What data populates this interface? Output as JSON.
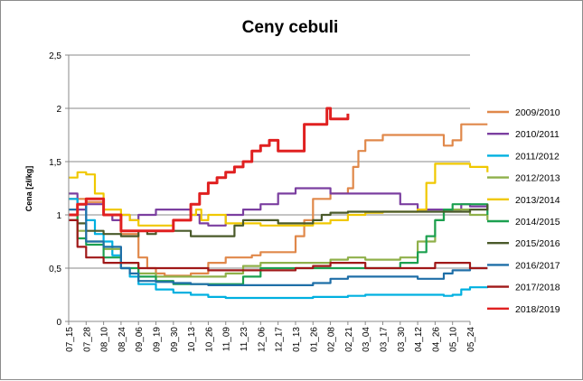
{
  "chart_data": {
    "type": "line",
    "title": "Ceny cebuli",
    "xlabel": "",
    "ylabel": "Cena [zł/kg]",
    "ylim": [
      0,
      2.5
    ],
    "yticks": [
      "0",
      "0,5",
      "1",
      "1,5",
      "2",
      "2,5"
    ],
    "grid": "horizontal",
    "legend_position": "right",
    "x_tick_labels": [
      "07_15",
      "07_28",
      "08_10",
      "08_24",
      "09_06",
      "09_19",
      "09_30",
      "10_13",
      "10_26",
      "11_09",
      "11_23",
      "12_06",
      "12_17",
      "01_13",
      "01_26",
      "02_08",
      "02_21",
      "03_04",
      "03_17",
      "03_30",
      "04_12",
      "04_26",
      "05_10",
      "05_24"
    ],
    "series": [
      {
        "name": "2009/2010",
        "color": "#E0884A",
        "x": [
          0,
          1,
          2,
          3,
          4,
          4.5,
          5,
          5.5,
          6,
          7,
          8,
          9,
          10,
          10.5,
          11,
          12,
          13,
          13.5,
          14,
          15,
          16,
          16.3,
          16.6,
          17,
          18,
          19,
          20,
          21,
          21.5,
          22,
          22.5,
          23,
          24
        ],
        "y": [
          1.15,
          1.12,
          1.0,
          0.82,
          0.6,
          0.5,
          0.45,
          0.43,
          0.43,
          0.45,
          0.55,
          0.6,
          0.6,
          0.62,
          0.65,
          0.65,
          0.8,
          0.95,
          1.15,
          1.2,
          1.25,
          1.45,
          1.6,
          1.7,
          1.75,
          1.75,
          1.75,
          1.75,
          1.65,
          1.7,
          1.85,
          1.85,
          1.85
        ]
      },
      {
        "name": "2010/2011",
        "color": "#7B3FA0",
        "x": [
          0,
          0.5,
          1,
          2,
          2.5,
          3,
          3.5,
          4,
          5,
          6,
          7,
          7.5,
          8,
          9,
          10,
          11,
          12,
          13,
          14,
          15,
          16,
          17,
          18,
          19,
          20,
          21,
          22,
          22.5,
          23,
          24
        ],
        "y": [
          1.2,
          1.05,
          1.1,
          1.0,
          0.95,
          1.0,
          0.95,
          1.0,
          1.05,
          1.05,
          1.0,
          0.92,
          0.9,
          1.0,
          1.05,
          1.1,
          1.2,
          1.25,
          1.25,
          1.2,
          1.2,
          1.2,
          1.2,
          1.1,
          1.05,
          1.05,
          1.05,
          1.1,
          1.08,
          1.05
        ]
      },
      {
        "name": "2011/2012",
        "color": "#00B0E0",
        "x": [
          0,
          0.5,
          1,
          1.5,
          2,
          2.5,
          3,
          3.5,
          4,
          5,
          6,
          7,
          8,
          9,
          10,
          11,
          12,
          13,
          14,
          15,
          16,
          17,
          18,
          19,
          20,
          21,
          21.5,
          22,
          22.5,
          23,
          24
        ],
        "y": [
          1.15,
          1.1,
          0.95,
          0.82,
          0.75,
          0.62,
          0.5,
          0.42,
          0.35,
          0.3,
          0.27,
          0.25,
          0.23,
          0.22,
          0.22,
          0.22,
          0.22,
          0.22,
          0.23,
          0.23,
          0.24,
          0.25,
          0.25,
          0.25,
          0.25,
          0.25,
          0.24,
          0.25,
          0.3,
          0.32,
          0.33
        ]
      },
      {
        "name": "2012/2013",
        "color": "#8FB04A",
        "x": [
          0,
          0.5,
          1,
          2,
          3,
          4,
          5,
          6,
          7,
          8,
          9,
          10,
          11,
          12,
          13,
          14,
          15,
          16,
          17,
          18,
          19,
          20,
          21,
          21.5,
          22,
          22.5,
          23,
          24
        ],
        "y": [
          1.0,
          0.85,
          0.75,
          0.68,
          0.55,
          0.45,
          0.42,
          0.42,
          0.42,
          0.42,
          0.45,
          0.52,
          0.55,
          0.55,
          0.55,
          0.55,
          0.58,
          0.6,
          0.58,
          0.58,
          0.6,
          0.75,
          0.95,
          1.05,
          1.05,
          1.05,
          1.0,
          0.95
        ]
      },
      {
        "name": "2013/2014",
        "color": "#F0C800",
        "x": [
          0,
          0.5,
          1,
          1.5,
          2,
          3,
          3.5,
          4,
          5,
          6,
          7,
          7.3,
          7.6,
          8,
          9,
          10,
          11,
          12,
          13,
          14,
          15,
          16,
          17,
          18,
          19,
          20,
          20.5,
          21,
          22,
          23,
          24
        ],
        "y": [
          1.35,
          1.4,
          1.38,
          1.2,
          1.05,
          1.0,
          0.95,
          0.9,
          0.9,
          0.95,
          1.0,
          1.05,
          0.95,
          1.0,
          0.92,
          0.92,
          0.9,
          0.9,
          0.9,
          0.92,
          0.95,
          1.0,
          1.02,
          1.03,
          1.03,
          1.05,
          1.3,
          1.48,
          1.48,
          1.45,
          1.4
        ]
      },
      {
        "name": "2014/2015",
        "color": "#1CA050",
        "x": [
          0,
          0.5,
          1,
          2,
          3,
          4,
          5,
          6,
          7,
          8,
          9,
          10,
          11,
          12,
          13,
          14,
          15,
          16,
          17,
          18,
          19,
          20,
          20.5,
          21,
          21.5,
          22,
          23,
          24
        ],
        "y": [
          1.0,
          0.78,
          0.72,
          0.6,
          0.5,
          0.42,
          0.38,
          0.35,
          0.35,
          0.35,
          0.35,
          0.42,
          0.5,
          0.5,
          0.5,
          0.5,
          0.5,
          0.5,
          0.5,
          0.5,
          0.55,
          0.65,
          0.8,
          0.95,
          1.05,
          1.1,
          1.1,
          1.0
        ]
      },
      {
        "name": "2015/2016",
        "color": "#4A5A2A",
        "x": [
          0,
          0.5,
          1,
          2,
          3,
          4,
          4.5,
          5,
          6,
          7,
          8,
          9,
          9.5,
          10,
          11,
          12,
          13,
          14,
          14.5,
          15,
          16,
          17,
          18,
          19,
          20,
          21,
          22,
          23,
          24
        ],
        "y": [
          0.95,
          0.92,
          0.85,
          0.82,
          0.8,
          0.85,
          0.82,
          0.85,
          0.85,
          0.8,
          0.8,
          0.8,
          0.9,
          0.95,
          0.95,
          0.92,
          0.92,
          0.95,
          1.0,
          1.02,
          1.03,
          1.03,
          1.03,
          1.03,
          1.03,
          1.03,
          1.03,
          1.05,
          1.1
        ]
      },
      {
        "name": "2016/2017",
        "color": "#1F6FA8",
        "x": [
          0,
          0.5,
          1,
          2,
          3,
          3.5,
          4,
          5,
          6,
          7,
          8,
          9,
          10,
          11,
          12,
          13,
          14,
          15,
          16,
          17,
          18,
          19,
          20,
          21,
          21.5,
          22,
          23,
          24
        ],
        "y": [
          1.05,
          1.1,
          0.75,
          0.7,
          0.5,
          0.45,
          0.38,
          0.37,
          0.36,
          0.35,
          0.34,
          0.34,
          0.34,
          0.34,
          0.34,
          0.34,
          0.36,
          0.4,
          0.42,
          0.42,
          0.42,
          0.42,
          0.4,
          0.4,
          0.45,
          0.48,
          0.5,
          0.5
        ]
      },
      {
        "name": "2017/2018",
        "color": "#A01818",
        "x": [
          0,
          0.5,
          1,
          2,
          3,
          4,
          5,
          6,
          7,
          8,
          9,
          10,
          11,
          12,
          13,
          14,
          15,
          16,
          17,
          18,
          19,
          20,
          21,
          22,
          23,
          24
        ],
        "y": [
          0.95,
          0.7,
          0.6,
          0.55,
          0.55,
          0.5,
          0.5,
          0.5,
          0.5,
          0.48,
          0.48,
          0.48,
          0.48,
          0.48,
          0.5,
          0.52,
          0.55,
          0.55,
          0.5,
          0.5,
          0.5,
          0.5,
          0.55,
          0.55,
          0.5,
          0.5
        ]
      },
      {
        "name": "2018/2019",
        "color": "#E02020",
        "x": [
          0,
          0.5,
          1,
          1.5,
          2,
          3,
          4,
          5,
          6,
          7,
          7.5,
          8,
          8.5,
          9,
          9.5,
          10,
          10.5,
          11,
          11.5,
          12,
          13,
          13.5,
          14,
          14.4,
          14.8,
          15,
          15.5,
          16
        ],
        "y": [
          1.0,
          1.1,
          1.15,
          1.15,
          1.0,
          0.85,
          0.85,
          0.85,
          0.95,
          1.1,
          1.2,
          1.3,
          1.35,
          1.4,
          1.45,
          1.5,
          1.6,
          1.65,
          1.7,
          1.6,
          1.6,
          1.85,
          1.85,
          1.85,
          2.0,
          1.9,
          1.9,
          1.95
        ]
      }
    ]
  }
}
